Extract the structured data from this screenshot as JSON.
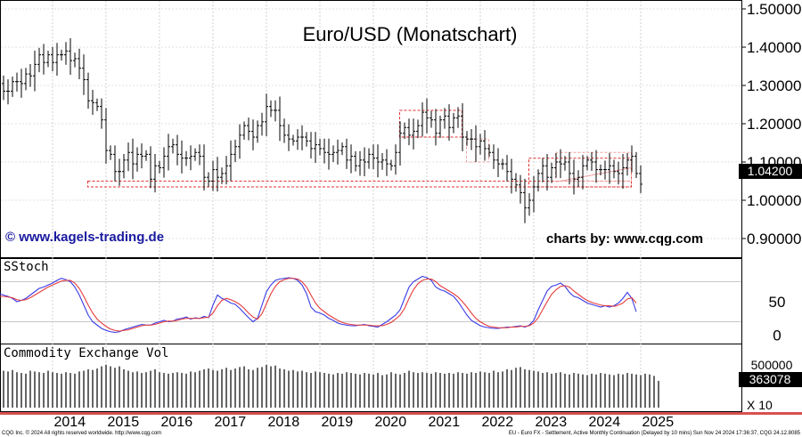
{
  "chart_data": [
    {
      "type": "ohlc",
      "title": "Euro/USD (Monatschart)",
      "watermark_left": "© www.kagels-trading.de",
      "watermark_right": "charts by: www.cqg.com",
      "ylim": [
        0.88,
        1.52
      ],
      "yticks": [
        "1.50000",
        "1.40000",
        "1.30000",
        "1.20000",
        "1.10000",
        "1.00000",
        "0.90000"
      ],
      "ytick_values": [
        1.5,
        1.4,
        1.3,
        1.2,
        1.1,
        1.0,
        0.9
      ],
      "last_price_label": "1.04200",
      "last_price": 1.042,
      "start": "2013-01",
      "closes": [
        1.305,
        1.285,
        1.285,
        1.31,
        1.31,
        1.305,
        1.33,
        1.325,
        1.355,
        1.38,
        1.36,
        1.38,
        1.36,
        1.38,
        1.38,
        1.39,
        1.365,
        1.37,
        1.345,
        1.315,
        1.26,
        1.255,
        1.245,
        1.21,
        1.13,
        1.12,
        1.075,
        1.075,
        1.105,
        1.125,
        1.095,
        1.12,
        1.115,
        1.12,
        1.055,
        1.09,
        1.085,
        1.115,
        1.14,
        1.145,
        1.12,
        1.11,
        1.11,
        1.115,
        1.125,
        1.115,
        1.06,
        1.05,
        1.08,
        1.06,
        1.07,
        1.09,
        1.12,
        1.14,
        1.17,
        1.195,
        1.18,
        1.165,
        1.195,
        1.205,
        1.245,
        1.235,
        1.235,
        1.195,
        1.17,
        1.16,
        1.155,
        1.165,
        1.165,
        1.155,
        1.135,
        1.145,
        1.135,
        1.125,
        1.12,
        1.125,
        1.13,
        1.14,
        1.105,
        1.115,
        1.09,
        1.105,
        1.1,
        1.12,
        1.11,
        1.1,
        1.105,
        1.095,
        1.09,
        1.125,
        1.175,
        1.19,
        1.17,
        1.18,
        1.195,
        1.23,
        1.215,
        1.21,
        1.175,
        1.21,
        1.22,
        1.19,
        1.215,
        1.22,
        1.165,
        1.16,
        1.16,
        1.14,
        1.155,
        1.135,
        1.125,
        1.105,
        1.095,
        1.095,
        1.075,
        1.055,
        1.04,
        1.02,
        0.98,
        1.0,
        1.035,
        1.07,
        1.09,
        1.06,
        1.085,
        1.1,
        1.095,
        1.1,
        1.07,
        1.055,
        1.06,
        1.09,
        1.105,
        1.1,
        1.08,
        1.08,
        1.08,
        1.09,
        1.075,
        1.07,
        1.085,
        1.105,
        1.115,
        1.07,
        1.042
      ],
      "annotations": [
        {
          "type": "box",
          "x0": "2014-09",
          "x1": "2024-11",
          "y0": 1.035,
          "y1": 1.05
        },
        {
          "type": "box",
          "x0": "2020-07",
          "x1": "2021-09",
          "y0": 1.165,
          "y1": 1.235
        },
        {
          "type": "box",
          "x0": "2021-10",
          "x1": "2022-03",
          "y0": 1.1,
          "y1": 1.16
        },
        {
          "type": "box",
          "x0": "2022-12",
          "x1": "2024-11",
          "y0": 1.035,
          "y1": 1.11
        },
        {
          "type": "box",
          "x0": "2023-06",
          "x1": "2024-11",
          "y0": 1.05,
          "y1": 1.125
        },
        {
          "type": "line",
          "x0": "2023-06",
          "y0": 1.048,
          "x1": "2024-11",
          "y1": 1.085
        }
      ]
    },
    {
      "type": "line",
      "title": "SStoch",
      "ylim": [
        -10,
        110
      ],
      "yticks": [
        "50",
        "0"
      ],
      "ytick_values": [
        50,
        0
      ],
      "guides": [
        20,
        80
      ],
      "series": [
        {
          "color": "#3a3ae6",
          "values": [
            62,
            60,
            58,
            55,
            50,
            52,
            55,
            60,
            65,
            70,
            72,
            75,
            78,
            82,
            85,
            83,
            80,
            72,
            60,
            45,
            30,
            20,
            15,
            10,
            7,
            5,
            4,
            5,
            8,
            10,
            12,
            14,
            16,
            15,
            15,
            18,
            20,
            22,
            20,
            21,
            24,
            25,
            27,
            24,
            26,
            25,
            28,
            26,
            45,
            60,
            55,
            52,
            48,
            46,
            40,
            33,
            26,
            20,
            25,
            45,
            65,
            75,
            82,
            84,
            85,
            86,
            85,
            82,
            75,
            62,
            42,
            35,
            33,
            30,
            25,
            22,
            18,
            16,
            15,
            14,
            14,
            15,
            16,
            14,
            13,
            12,
            16,
            20,
            25,
            30,
            38,
            55,
            72,
            80,
            84,
            88,
            86,
            82,
            72,
            68,
            66,
            62,
            58,
            50,
            40,
            30,
            22,
            18,
            14,
            12,
            11,
            10,
            10,
            11,
            12,
            12,
            13,
            14,
            12,
            15,
            22,
            38,
            52,
            66,
            73,
            75,
            78,
            73,
            64,
            58,
            56,
            52,
            48,
            46,
            44,
            42,
            44,
            42,
            44,
            48,
            55,
            64,
            55,
            35
          ]
        },
        {
          "color": "#e63a3a",
          "values": [
            58,
            58,
            57,
            56,
            53,
            52,
            53,
            56,
            60,
            64,
            68,
            72,
            75,
            78,
            81,
            82,
            82,
            78,
            70,
            58,
            45,
            33,
            24,
            18,
            13,
            9,
            7,
            6,
            7,
            8,
            10,
            12,
            14,
            15,
            15,
            16,
            18,
            20,
            21,
            21,
            22,
            24,
            25,
            25,
            25,
            25,
            26,
            27,
            33,
            44,
            52,
            55,
            53,
            50,
            46,
            40,
            33,
            27,
            24,
            32,
            47,
            62,
            73,
            80,
            83,
            85,
            85,
            84,
            80,
            72,
            60,
            48,
            40,
            35,
            30,
            26,
            22,
            19,
            17,
            16,
            15,
            15,
            15,
            15,
            14,
            14,
            14,
            16,
            19,
            24,
            30,
            40,
            55,
            68,
            77,
            82,
            84,
            84,
            80,
            74,
            70,
            66,
            62,
            57,
            50,
            42,
            33,
            25,
            20,
            16,
            13,
            12,
            11,
            11,
            11,
            12,
            12,
            13,
            13,
            14,
            18,
            26,
            38,
            50,
            61,
            68,
            73,
            74,
            72,
            66,
            61,
            56,
            52,
            49,
            47,
            45,
            44,
            44,
            43,
            45,
            48,
            54,
            56,
            48
          ]
        }
      ]
    },
    {
      "type": "bar",
      "title": "Commodity Exchange Vol",
      "ytick_label": "500000",
      "ytick_value": 500000,
      "ylim": [
        0,
        820000
      ],
      "last_value_label": "363078",
      "last_value": 363078,
      "scale_note": "X 10",
      "values": [
        520000,
        500000,
        490000,
        510000,
        480000,
        470000,
        460000,
        500000,
        490000,
        480000,
        470000,
        500000,
        480000,
        470000,
        460000,
        480000,
        470000,
        460000,
        490000,
        500000,
        520000,
        510000,
        530000,
        560000,
        580000,
        560000,
        540000,
        560000,
        520000,
        500000,
        480000,
        490000,
        470000,
        480000,
        500000,
        520000,
        480000,
        470000,
        460000,
        470000,
        480000,
        470000,
        460000,
        490000,
        480000,
        500000,
        520000,
        530000,
        510000,
        500000,
        520000,
        540000,
        510000,
        530000,
        550000,
        560000,
        520000,
        510000,
        540000,
        550000,
        580000,
        560000,
        570000,
        530000,
        520000,
        500000,
        510000,
        490000,
        500000,
        480000,
        470000,
        490000,
        480000,
        470000,
        460000,
        450000,
        470000,
        460000,
        480000,
        470000,
        460000,
        450000,
        470000,
        460000,
        450000,
        470000,
        440000,
        450000,
        480000,
        460000,
        450000,
        470000,
        500000,
        480000,
        470000,
        480000,
        470000,
        460000,
        480000,
        470000,
        460000,
        470000,
        460000,
        480000,
        470000,
        460000,
        480000,
        470000,
        490000,
        480000,
        470000,
        500000,
        480000,
        490000,
        520000,
        510000,
        540000,
        550000,
        520000,
        510000,
        500000,
        490000,
        470000,
        480000,
        460000,
        470000,
        480000,
        460000,
        450000,
        470000,
        460000,
        450000,
        440000,
        460000,
        450000,
        470000,
        460000,
        450000,
        440000,
        460000,
        450000,
        470000,
        460000,
        450000,
        440000,
        460000,
        450000,
        430000,
        363078
      ]
    }
  ],
  "xaxis": {
    "labels": [
      "2014",
      "2015",
      "2016",
      "2017",
      "2018",
      "2019",
      "2020",
      "2021",
      "2022",
      "2023",
      "2024",
      "2025"
    ],
    "label_years": [
      2014,
      2015,
      2016,
      2017,
      2018,
      2019,
      2020,
      2021,
      2022,
      2023,
      2024,
      2025
    ],
    "range": [
      "2013-01",
      "2025-12"
    ]
  },
  "footer": {
    "left": "CQG Inc. © 2024 All rights reserved worldwide. http://www.cqg.com",
    "right": "EU - Euro FX - Settlement, Active Monthly Continuation (Delayed by 10 mins) Sun Nov 24 2024 17:36:37, CQG 24.12.8085"
  },
  "colors": {
    "frame": "#000000",
    "annotation": "#e03030",
    "annotation_light": "#f0a0a0",
    "watermark": "#1a1aa0",
    "price": "#000000"
  }
}
